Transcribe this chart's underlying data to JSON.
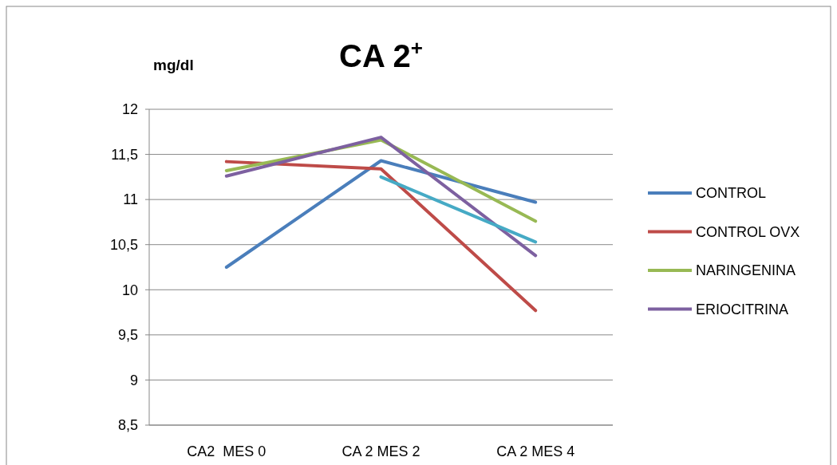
{
  "chart_data": {
    "type": "line",
    "title": "CA 2$^{+}$",
    "ylabel": "mg/dl",
    "categories": [
      "CA2  MES 0",
      "CA 2 MES 2",
      "CA 2 MES 4"
    ],
    "series": [
      {
        "name": "CONTROL",
        "color": "#4a7ebb",
        "values": [
          10.25,
          11.43,
          10.97
        ]
      },
      {
        "name": "CONTROL OVX",
        "color": "#be4b48",
        "values": [
          11.42,
          11.34,
          9.77
        ]
      },
      {
        "name": "NARINGENINA",
        "color": "#98b954",
        "values": [
          11.32,
          11.66,
          10.76
        ]
      },
      {
        "name": "ERIOCITRINA",
        "color": "#7d60a0",
        "values": [
          11.26,
          11.69,
          10.38
        ]
      },
      {
        "color": "#46aac5",
        "values": [
          null,
          11.25,
          10.53
        ]
      }
    ],
    "ylim": [
      8.5,
      12
    ],
    "yticks": [
      {
        "value": 8.5,
        "label": "8,5"
      },
      9,
      {
        "value": 9.5,
        "label": "9,5"
      },
      10,
      {
        "value": 10.5,
        "label": "10,5"
      },
      11,
      {
        "value": 11.5,
        "label": "11,5"
      },
      12
    ],
    "grid": "y",
    "legend": "right",
    "marker": "none",
    "line_style": "solid"
  }
}
